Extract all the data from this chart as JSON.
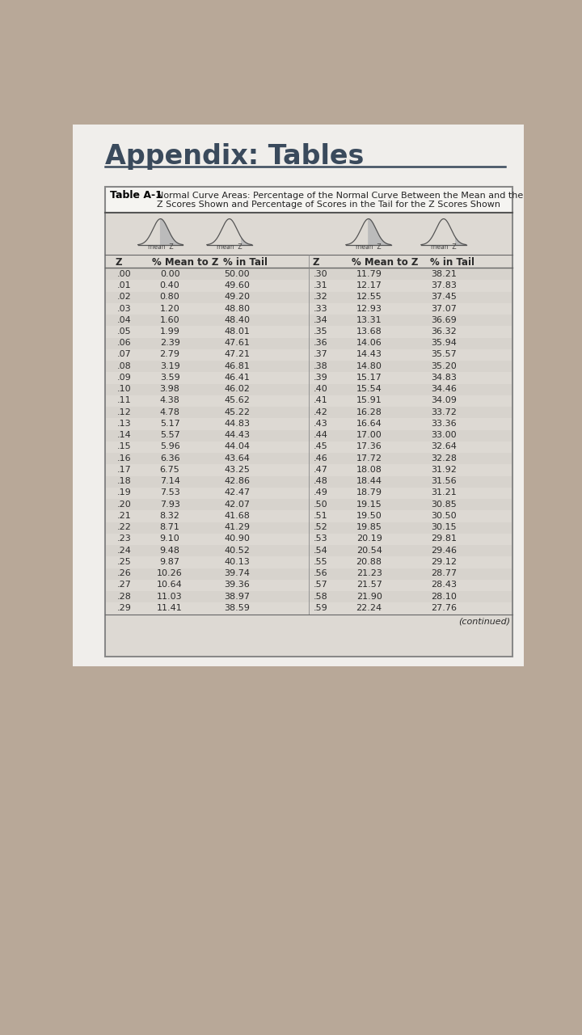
{
  "page_title": "Appendix: Tables",
  "table_label": "Table A-1",
  "table_caption_line1": "Normal Curve Areas: Percentage of the Normal Curve Between the Mean and the",
  "table_caption_line2": "Z Scores Shown and Percentage of Scores in the Tail for the Z Scores Shown",
  "col_headers_left": [
    "Z",
    "% Mean to Z",
    "% in Tail"
  ],
  "col_headers_right": [
    "Z",
    "% Mean to Z",
    "% in Tail"
  ],
  "data_left": [
    [
      ".00",
      "0.00",
      "50.00"
    ],
    [
      ".01",
      "0.40",
      "49.60"
    ],
    [
      ".02",
      "0.80",
      "49.20"
    ],
    [
      ".03",
      "1.20",
      "48.80"
    ],
    [
      ".04",
      "1.60",
      "48.40"
    ],
    [
      ".05",
      "1.99",
      "48.01"
    ],
    [
      ".06",
      "2.39",
      "47.61"
    ],
    [
      ".07",
      "2.79",
      "47.21"
    ],
    [
      ".08",
      "3.19",
      "46.81"
    ],
    [
      ".09",
      "3.59",
      "46.41"
    ],
    [
      ".10",
      "3.98",
      "46.02"
    ],
    [
      ".11",
      "4.38",
      "45.62"
    ],
    [
      ".12",
      "4.78",
      "45.22"
    ],
    [
      ".13",
      "5.17",
      "44.83"
    ],
    [
      ".14",
      "5.57",
      "44.43"
    ],
    [
      ".15",
      "5.96",
      "44.04"
    ],
    [
      ".16",
      "6.36",
      "43.64"
    ],
    [
      ".17",
      "6.75",
      "43.25"
    ],
    [
      ".18",
      "7.14",
      "42.86"
    ],
    [
      ".19",
      "7.53",
      "42.47"
    ],
    [
      ".20",
      "7.93",
      "42.07"
    ],
    [
      ".21",
      "8.32",
      "41.68"
    ],
    [
      ".22",
      "8.71",
      "41.29"
    ],
    [
      ".23",
      "9.10",
      "40.90"
    ],
    [
      ".24",
      "9.48",
      "40.52"
    ],
    [
      ".25",
      "9.87",
      "40.13"
    ],
    [
      ".26",
      "10.26",
      "39.74"
    ],
    [
      ".27",
      "10.64",
      "39.36"
    ],
    [
      ".28",
      "11.03",
      "38.97"
    ],
    [
      ".29",
      "11.41",
      "38.59"
    ]
  ],
  "data_right": [
    [
      ".30",
      "11.79",
      "38.21"
    ],
    [
      ".31",
      "12.17",
      "37.83"
    ],
    [
      ".32",
      "12.55",
      "37.45"
    ],
    [
      ".33",
      "12.93",
      "37.07"
    ],
    [
      ".34",
      "13.31",
      "36.69"
    ],
    [
      ".35",
      "13.68",
      "36.32"
    ],
    [
      ".36",
      "14.06",
      "35.94"
    ],
    [
      ".37",
      "14.43",
      "35.57"
    ],
    [
      ".38",
      "14.80",
      "35.20"
    ],
    [
      ".39",
      "15.17",
      "34.83"
    ],
    [
      ".40",
      "15.54",
      "34.46"
    ],
    [
      ".41",
      "15.91",
      "34.09"
    ],
    [
      ".42",
      "16.28",
      "33.72"
    ],
    [
      ".43",
      "16.64",
      "33.36"
    ],
    [
      ".44",
      "17.00",
      "33.00"
    ],
    [
      ".45",
      "17.36",
      "32.64"
    ],
    [
      ".46",
      "17.72",
      "32.28"
    ],
    [
      ".47",
      "18.08",
      "31.92"
    ],
    [
      ".48",
      "18.44",
      "31.56"
    ],
    [
      ".49",
      "18.79",
      "31.21"
    ],
    [
      ".50",
      "19.15",
      "30.85"
    ],
    [
      ".51",
      "19.50",
      "30.50"
    ],
    [
      ".52",
      "19.85",
      "30.15"
    ],
    [
      ".53",
      "20.19",
      "29.81"
    ],
    [
      ".54",
      "20.54",
      "29.46"
    ],
    [
      ".55",
      "20.88",
      "29.12"
    ],
    [
      ".56",
      "21.23",
      "28.77"
    ],
    [
      ".57",
      "21.57",
      "28.43"
    ],
    [
      ".58",
      "21.90",
      "28.10"
    ],
    [
      ".59",
      "22.24",
      "27.76"
    ]
  ],
  "continued_text": "(continued)",
  "outer_bg": "#b8a898",
  "page_bg": "#f0eeeb",
  "title_color": "#3a4a5c",
  "table_border_color": "#888888",
  "header_color": "#2a2a2a",
  "text_color": "#2a2a2a",
  "curve_color": "#555555",
  "shade_color": "#bbbbbb",
  "row_alt_color": "#e0ddd8"
}
